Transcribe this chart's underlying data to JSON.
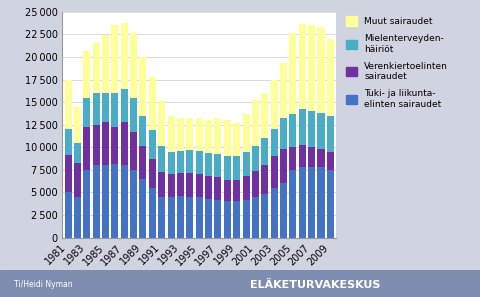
{
  "years": [
    1981,
    1982,
    1983,
    1984,
    1985,
    1986,
    1987,
    1988,
    1989,
    1990,
    1991,
    1992,
    1993,
    1994,
    1995,
    1996,
    1997,
    1998,
    1999,
    2000,
    2001,
    2002,
    2003,
    2004,
    2005,
    2006,
    2007,
    2008,
    2009
  ],
  "tuki": [
    5000,
    4500,
    7500,
    8000,
    8000,
    8200,
    8000,
    7500,
    6500,
    5500,
    4500,
    4500,
    4600,
    4500,
    4500,
    4300,
    4200,
    4000,
    4000,
    4200,
    4500,
    4800,
    5500,
    6000,
    7500,
    7800,
    7800,
    7800,
    7500
  ],
  "verenkierto": [
    4200,
    3800,
    4800,
    4500,
    4800,
    4000,
    4800,
    4200,
    3600,
    3200,
    2800,
    2500,
    2500,
    2600,
    2500,
    2500,
    2500,
    2400,
    2400,
    2600,
    2900,
    3200,
    3500,
    3800,
    2500,
    2500,
    2200,
    2000,
    2000
  ],
  "mielenterveys": [
    2800,
    2200,
    3200,
    3500,
    3200,
    3800,
    3700,
    3800,
    3400,
    3200,
    2800,
    2500,
    2500,
    2600,
    2600,
    2600,
    2600,
    2600,
    2600,
    2700,
    2800,
    3000,
    3000,
    3500,
    3700,
    3900,
    4000,
    4000,
    4000
  ],
  "muut": [
    5500,
    4000,
    5200,
    5500,
    6400,
    7500,
    7300,
    7200,
    6500,
    5900,
    5000,
    4000,
    3600,
    3600,
    3600,
    3600,
    4000,
    4000,
    3700,
    4200,
    5000,
    5000,
    5500,
    6000,
    9000,
    9500,
    9500,
    9500,
    8500
  ],
  "colors": [
    "#4472C4",
    "#7030A0",
    "#4BACC6",
    "#FFFF99"
  ],
  "legend_labels": [
    "Tuki- ja liikunta-\nelinten sairaudet",
    "Verenkiertoelinten\nsairaudet",
    "Mielenterveyden-\nhäiriöt",
    "Muut sairaudet"
  ],
  "ylim": [
    0,
    25000
  ],
  "yticks": [
    0,
    2500,
    5000,
    7500,
    10000,
    12500,
    15000,
    17500,
    20000,
    22500,
    25000
  ],
  "footer_left": "Ti/Heidi Nyman",
  "footer_right": "ELÄKETURVAKESKUS",
  "footer_bg": "#7F8DB0"
}
